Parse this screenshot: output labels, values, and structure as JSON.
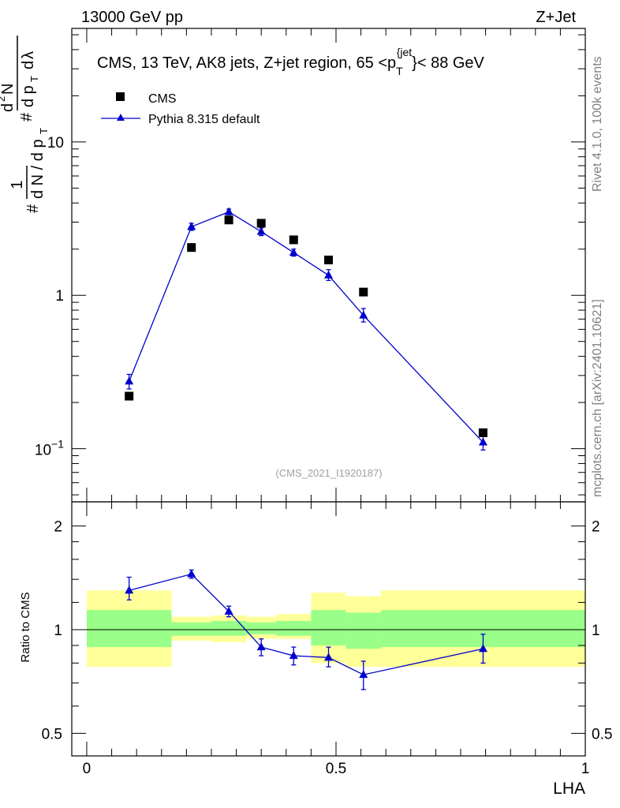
{
  "header": {
    "left": "13000 GeV pp",
    "right": "Z+Jet"
  },
  "side_labels": {
    "rivet": "Rivet 4.1.0,  100k events",
    "mcplots": "mcplots.cern.ch [arXiv:2401.10621]"
  },
  "chart_data": [
    {
      "type": "scatter",
      "title_parts": {
        "pre": "CMS, 13 TeV, AK8 jets, Z+jet region, 65 <p",
        "sub": "T",
        "sup": "{jet",
        "post": "}< 88 GeV"
      },
      "watermark": "(CMS_2021_I1920187)",
      "y_scale": "log",
      "ylim": [
        0.045,
        55
      ],
      "xlim": [
        -0.03,
        1.0
      ],
      "ylabel": "1/N dN/dp_T d²N/dp_T dλ",
      "y_tick_labels": [
        {
          "value": 0.1,
          "base": "10",
          "exp": "−1"
        },
        {
          "value": 1,
          "label": "1"
        },
        {
          "value": 10,
          "label": "10"
        }
      ],
      "legend": {
        "position": "top-left",
        "entries": [
          "CMS",
          "Pythia 8.315 default"
        ]
      },
      "series": [
        {
          "name": "CMS",
          "color": "#000000",
          "marker": "square",
          "x": [
            0.085,
            0.21,
            0.285,
            0.35,
            0.415,
            0.485,
            0.555,
            0.795
          ],
          "y": [
            0.22,
            2.05,
            3.1,
            2.95,
            2.3,
            1.7,
            1.05,
            0.127
          ]
        },
        {
          "name": "Pythia 8.315 default",
          "color": "#0000cc",
          "marker": "triangle",
          "x": [
            0.085,
            0.21,
            0.285,
            0.35,
            0.415,
            0.485,
            0.555,
            0.795
          ],
          "y": [
            0.275,
            2.8,
            3.5,
            2.6,
            1.9,
            1.35,
            0.74,
            0.11
          ],
          "err_lo": [
            0.03,
            0.15,
            0.15,
            0.15,
            0.1,
            0.1,
            0.07,
            0.012
          ],
          "err_hi": [
            0.03,
            0.15,
            0.15,
            0.15,
            0.1,
            0.12,
            0.08,
            0.012
          ]
        }
      ]
    },
    {
      "type": "scatter",
      "ylabel": "Ratio to CMS",
      "xlabel": "LHA",
      "y_scale": "log",
      "ylim": [
        0.43,
        2.35
      ],
      "xlim": [
        -0.03,
        1.0
      ],
      "y_tick_labels": [
        {
          "value": 0.5,
          "label": "0.5"
        },
        {
          "value": 1,
          "label": "1"
        },
        {
          "value": 2,
          "label": "2"
        }
      ],
      "x_tick_labels": [
        {
          "value": 0,
          "label": "0"
        },
        {
          "value": 0.5,
          "label": "0.5"
        },
        {
          "value": 1,
          "label": "1"
        }
      ],
      "reference_line": 1,
      "bands": [
        {
          "x0": 0.0,
          "x1": 0.17,
          "yellow": [
            0.78,
            1.3
          ],
          "green": [
            0.89,
            1.14
          ]
        },
        {
          "x0": 0.17,
          "x1": 0.25,
          "yellow": [
            0.93,
            1.09
          ],
          "green": [
            0.96,
            1.05
          ]
        },
        {
          "x0": 0.25,
          "x1": 0.32,
          "yellow": [
            0.92,
            1.1
          ],
          "green": [
            0.96,
            1.06
          ]
        },
        {
          "x0": 0.32,
          "x1": 0.38,
          "yellow": [
            0.94,
            1.09
          ],
          "green": [
            0.97,
            1.05
          ]
        },
        {
          "x0": 0.38,
          "x1": 0.45,
          "yellow": [
            0.94,
            1.11
          ],
          "green": [
            0.96,
            1.06
          ]
        },
        {
          "x0": 0.45,
          "x1": 0.52,
          "yellow": [
            0.8,
            1.28
          ],
          "green": [
            0.9,
            1.14
          ]
        },
        {
          "x0": 0.52,
          "x1": 0.59,
          "yellow": [
            0.78,
            1.25
          ],
          "green": [
            0.88,
            1.12
          ]
        },
        {
          "x0": 0.59,
          "x1": 1.0,
          "yellow": [
            0.78,
            1.3
          ],
          "green": [
            0.89,
            1.14
          ]
        }
      ],
      "series": [
        {
          "name": "Pythia 8.315 default / CMS",
          "color": "#0000cc",
          "marker": "triangle",
          "x": [
            0.085,
            0.21,
            0.285,
            0.35,
            0.415,
            0.485,
            0.555,
            0.795
          ],
          "y": [
            1.3,
            1.45,
            1.13,
            0.89,
            0.84,
            0.83,
            0.74,
            0.88
          ],
          "err_lo": [
            0.08,
            0.04,
            0.04,
            0.05,
            0.05,
            0.05,
            0.07,
            0.08
          ],
          "err_hi": [
            0.12,
            0.04,
            0.04,
            0.05,
            0.05,
            0.06,
            0.07,
            0.09
          ]
        }
      ]
    }
  ]
}
